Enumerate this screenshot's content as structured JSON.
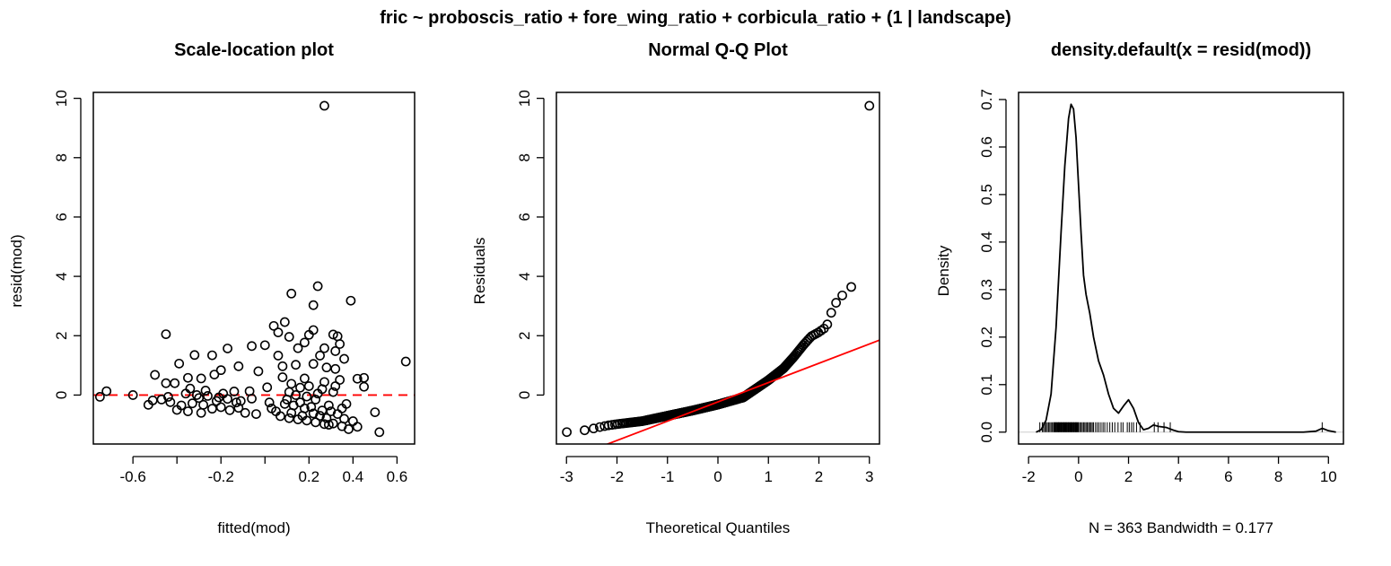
{
  "figure": {
    "title": "fric ~ proboscis_ratio + fore_wing_ratio + corbicula_ratio + (1 | landscape)"
  },
  "chart_data": [
    {
      "type": "scatter",
      "title": "Scale-location plot",
      "xlabel": "fitted(mod)",
      "ylabel": "resid(mod)",
      "xlim": [
        -0.78,
        0.68
      ],
      "ylim": [
        -1.65,
        10.2
      ],
      "xticks": [
        -0.6,
        -0.4,
        -0.2,
        0.0,
        0.2,
        0.4,
        0.6
      ],
      "xticklabels": [
        "-0.6",
        "",
        "-0.2",
        "",
        "0.2",
        "0.4",
        "0.6"
      ],
      "yticks": [
        0,
        2,
        4,
        6,
        8,
        10
      ],
      "yticklabels": [
        "0",
        "2",
        "4",
        "6",
        "8",
        "10"
      ],
      "reference_line": {
        "y": 0,
        "color": "#ff0000",
        "style": "dashed"
      },
      "points": [
        [
          0.27,
          9.75
        ],
        [
          0.12,
          3.42
        ],
        [
          0.24,
          3.67
        ],
        [
          0.39,
          3.18
        ],
        [
          0.22,
          3.03
        ],
        [
          0.04,
          2.33
        ],
        [
          0.09,
          2.46
        ],
        [
          0.2,
          2.03
        ],
        [
          0.31,
          2.04
        ],
        [
          0.33,
          1.98
        ],
        [
          0.11,
          1.96
        ],
        [
          -0.45,
          2.05
        ],
        [
          0.15,
          1.58
        ],
        [
          0.22,
          2.19
        ],
        [
          0.34,
          1.72
        ],
        [
          0.18,
          1.77
        ],
        [
          0.06,
          2.11
        ],
        [
          0.0,
          1.68
        ],
        [
          0.25,
          1.33
        ],
        [
          0.32,
          1.48
        ],
        [
          0.64,
          1.13
        ],
        [
          -0.39,
          1.06
        ],
        [
          -0.32,
          1.35
        ],
        [
          -0.24,
          1.34
        ],
        [
          -0.17,
          1.57
        ],
        [
          -0.06,
          1.65
        ],
        [
          0.27,
          1.58
        ],
        [
          0.36,
          1.22
        ],
        [
          0.06,
          1.33
        ],
        [
          -0.2,
          0.84
        ],
        [
          -0.12,
          0.97
        ],
        [
          -0.03,
          0.8
        ],
        [
          0.08,
          0.97
        ],
        [
          0.14,
          1.02
        ],
        [
          0.22,
          1.05
        ],
        [
          0.28,
          0.93
        ],
        [
          0.32,
          0.88
        ],
        [
          0.42,
          0.55
        ],
        [
          0.45,
          0.58
        ],
        [
          0.45,
          0.28
        ],
        [
          -0.5,
          0.68
        ],
        [
          -0.45,
          0.4
        ],
        [
          -0.41,
          0.4
        ],
        [
          -0.35,
          0.58
        ],
        [
          -0.29,
          0.56
        ],
        [
          -0.23,
          0.69
        ],
        [
          -0.14,
          0.12
        ],
        [
          -0.07,
          0.13
        ],
        [
          0.01,
          0.26
        ],
        [
          0.12,
          0.38
        ],
        [
          0.18,
          0.56
        ],
        [
          0.27,
          0.44
        ],
        [
          0.34,
          0.51
        ],
        [
          -0.72,
          0.13
        ],
        [
          -0.6,
          0.0
        ],
        [
          -0.75,
          -0.06
        ],
        [
          -0.53,
          -0.33
        ],
        [
          -0.51,
          -0.18
        ],
        [
          -0.47,
          -0.15
        ],
        [
          -0.43,
          -0.24
        ],
        [
          -0.38,
          -0.35
        ],
        [
          -0.33,
          -0.28
        ],
        [
          -0.28,
          -0.33
        ],
        [
          -0.24,
          -0.46
        ],
        [
          -0.2,
          -0.41
        ],
        [
          -0.16,
          -0.51
        ],
        [
          -0.12,
          -0.43
        ],
        [
          -0.09,
          -0.6
        ],
        [
          -0.04,
          -0.64
        ],
        [
          0.03,
          -0.45
        ],
        [
          0.07,
          -0.71
        ],
        [
          0.11,
          -0.78
        ],
        [
          0.15,
          -0.82
        ],
        [
          0.19,
          -0.86
        ],
        [
          0.23,
          -0.92
        ],
        [
          0.27,
          -0.98
        ],
        [
          0.31,
          -0.96
        ],
        [
          0.35,
          -1.05
        ],
        [
          0.38,
          -1.15
        ],
        [
          0.42,
          -1.07
        ],
        [
          0.5,
          -0.58
        ],
        [
          0.52,
          -1.25
        ],
        [
          -0.44,
          -0.06
        ],
        [
          -0.36,
          0.05
        ],
        [
          -0.31,
          0.0
        ],
        [
          -0.26,
          -0.03
        ],
        [
          -0.21,
          -0.08
        ],
        [
          -0.17,
          -0.13
        ],
        [
          -0.11,
          -0.2
        ],
        [
          -0.06,
          -0.12
        ],
        [
          0.02,
          -0.25
        ],
        [
          0.09,
          -0.3
        ],
        [
          0.13,
          -0.35
        ],
        [
          0.16,
          -0.25
        ],
        [
          0.21,
          -0.4
        ],
        [
          0.26,
          -0.52
        ],
        [
          0.29,
          -0.35
        ],
        [
          0.33,
          -0.64
        ],
        [
          0.36,
          -0.8
        ],
        [
          0.4,
          -0.88
        ],
        [
          0.31,
          0.1
        ],
        [
          0.24,
          0.05
        ],
        [
          0.19,
          -0.05
        ],
        [
          0.14,
          0.0
        ],
        [
          0.1,
          -0.15
        ],
        [
          -0.34,
          0.22
        ],
        [
          -0.3,
          -0.1
        ],
        [
          -0.27,
          0.15
        ],
        [
          -0.22,
          -0.2
        ],
        [
          -0.19,
          0.05
        ],
        [
          -0.13,
          -0.25
        ],
        [
          0.05,
          -0.55
        ],
        [
          0.12,
          -0.6
        ],
        [
          0.17,
          -0.7
        ],
        [
          0.22,
          -0.62
        ],
        [
          0.28,
          -0.78
        ],
        [
          0.3,
          -0.55
        ],
        [
          0.26,
          0.2
        ],
        [
          0.2,
          0.3
        ],
        [
          0.08,
          0.6
        ],
        [
          0.32,
          0.3
        ],
        [
          -0.4,
          -0.5
        ],
        [
          -0.35,
          -0.55
        ],
        [
          -0.29,
          -0.6
        ],
        [
          0.16,
          0.25
        ],
        [
          0.23,
          -0.15
        ],
        [
          0.37,
          -0.3
        ],
        [
          0.18,
          -0.45
        ],
        [
          0.11,
          0.1
        ],
        [
          0.25,
          -0.7
        ],
        [
          0.29,
          -1.0
        ],
        [
          0.35,
          -0.45
        ]
      ]
    },
    {
      "type": "scatter",
      "title": "Normal Q-Q Plot",
      "xlabel": "Theoretical Quantiles",
      "ylabel": "Residuals",
      "xlim": [
        -3.2,
        3.2
      ],
      "ylim": [
        -1.65,
        10.2
      ],
      "xticks": [
        -3,
        -2,
        -1,
        0,
        1,
        2,
        3
      ],
      "xticklabels": [
        "-3",
        "-2",
        "-1",
        "0",
        "1",
        "2",
        "3"
      ],
      "yticks": [
        0,
        2,
        4,
        6,
        8,
        10
      ],
      "yticklabels": [
        "0",
        "2",
        "4",
        "6",
        "8",
        "10"
      ],
      "reference_line": {
        "intercept": -0.23,
        "slope": 0.65,
        "color": "#ff0000",
        "style": "solid"
      },
      "curve": {
        "n": 363,
        "quantiles": [
          [
            -3.0,
            -1.25
          ],
          [
            -2.6,
            -1.18
          ],
          [
            -2.4,
            -1.1
          ],
          [
            -2.2,
            -1.03
          ],
          [
            -2.0,
            -0.98
          ],
          [
            -1.5,
            -0.88
          ],
          [
            -1.0,
            -0.7
          ],
          [
            -0.5,
            -0.52
          ],
          [
            0.0,
            -0.32
          ],
          [
            0.5,
            -0.08
          ],
          [
            1.0,
            0.5
          ],
          [
            1.3,
            0.9
          ],
          [
            1.5,
            1.28
          ],
          [
            1.7,
            1.7
          ],
          [
            1.85,
            1.98
          ],
          [
            2.0,
            2.12
          ],
          [
            2.15,
            2.3
          ],
          [
            2.3,
            3.05
          ],
          [
            2.4,
            3.2
          ],
          [
            2.5,
            3.45
          ],
          [
            2.66,
            3.67
          ],
          [
            3.0,
            9.75
          ]
        ]
      }
    },
    {
      "type": "line",
      "title": "density.default(x = resid(mod))",
      "xlabel": "N = 363   Bandwidth = 0.177",
      "ylabel": "Density",
      "xlim": [
        -2.4,
        10.6
      ],
      "ylim": [
        -0.025,
        0.715
      ],
      "xticks": [
        -2,
        0,
        2,
        4,
        6,
        8,
        10
      ],
      "xticklabels": [
        "-2",
        "0",
        "2",
        "4",
        "6",
        "8",
        "10"
      ],
      "yticks": [
        0.0,
        0.1,
        0.2,
        0.3,
        0.4,
        0.5,
        0.6,
        0.7
      ],
      "yticklabels": [
        "0.0",
        "0.1",
        "0.2",
        "0.3",
        "0.4",
        "0.5",
        "0.6",
        "0.7"
      ],
      "baseline": {
        "y": 0,
        "color": "#cccccc"
      },
      "x": [
        -1.7,
        -1.5,
        -1.3,
        -1.1,
        -0.9,
        -0.7,
        -0.55,
        -0.4,
        -0.3,
        -0.2,
        -0.1,
        0.0,
        0.1,
        0.2,
        0.3,
        0.45,
        0.6,
        0.8,
        1.0,
        1.2,
        1.4,
        1.6,
        1.8,
        2.0,
        2.2,
        2.4,
        2.6,
        2.8,
        3.0,
        3.2,
        3.5,
        3.8,
        4.0,
        4.3,
        5.0,
        6.0,
        7.0,
        8.0,
        9.0,
        9.5,
        9.75,
        10.0,
        10.3
      ],
      "y": [
        0.0,
        0.005,
        0.025,
        0.08,
        0.22,
        0.42,
        0.56,
        0.66,
        0.69,
        0.68,
        0.62,
        0.52,
        0.42,
        0.33,
        0.29,
        0.25,
        0.2,
        0.15,
        0.12,
        0.08,
        0.05,
        0.04,
        0.055,
        0.068,
        0.05,
        0.02,
        0.005,
        0.008,
        0.015,
        0.012,
        0.01,
        0.004,
        0.001,
        0.0,
        0.0,
        0.0,
        0.0,
        0.0,
        0.0,
        0.002,
        0.008,
        0.003,
        0.0
      ],
      "rug": [
        -1.55,
        -1.45,
        -1.4,
        -1.35,
        -1.3,
        -1.25,
        -1.2,
        -1.15,
        -1.1,
        -1.05,
        -1.0,
        -0.98,
        -0.95,
        -0.92,
        -0.9,
        -0.88,
        -0.85,
        -0.82,
        -0.8,
        -0.78,
        -0.75,
        -0.72,
        -0.7,
        -0.68,
        -0.65,
        -0.62,
        -0.6,
        -0.58,
        -0.55,
        -0.52,
        -0.5,
        -0.48,
        -0.45,
        -0.42,
        -0.4,
        -0.38,
        -0.35,
        -0.32,
        -0.3,
        -0.28,
        -0.25,
        -0.22,
        -0.2,
        -0.18,
        -0.15,
        -0.12,
        -0.1,
        -0.08,
        -0.05,
        -0.02,
        0.0,
        0.05,
        0.1,
        0.15,
        0.2,
        0.25,
        0.3,
        0.35,
        0.4,
        0.45,
        0.5,
        0.55,
        0.6,
        0.68,
        0.75,
        0.82,
        0.9,
        0.98,
        1.05,
        1.15,
        1.25,
        1.35,
        1.45,
        1.58,
        1.7,
        1.78,
        1.95,
        2.03,
        2.12,
        2.2,
        2.32,
        2.46,
        3.03,
        3.18,
        3.42,
        3.67,
        9.75
      ]
    }
  ]
}
